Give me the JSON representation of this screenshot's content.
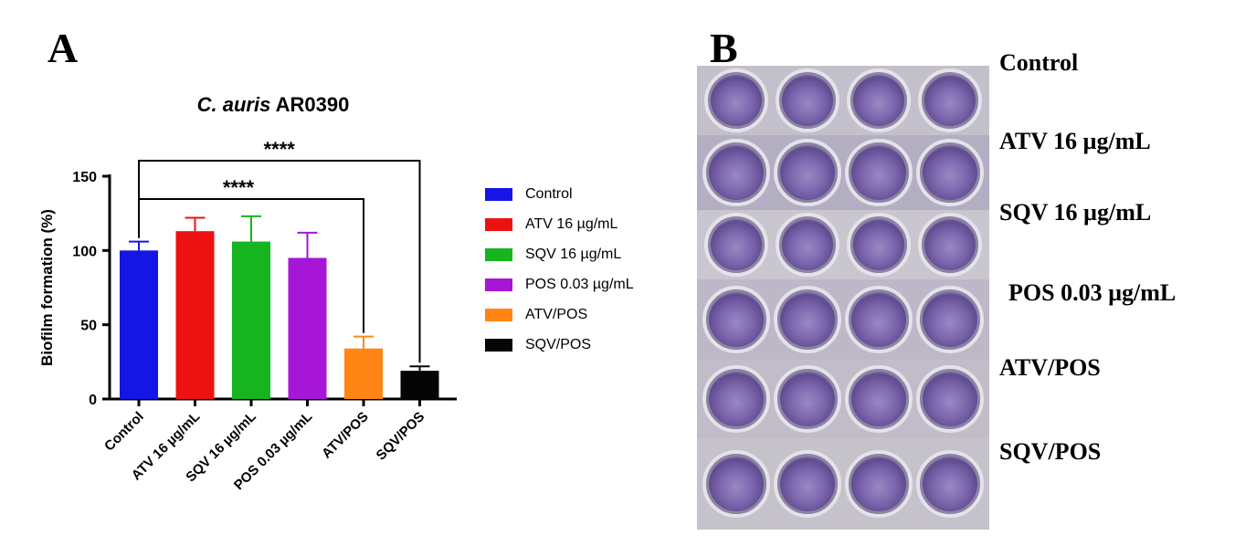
{
  "panel_a_label": "A",
  "panel_b_label": "B",
  "chart_data": {
    "type": "bar",
    "title_italic": "C. auris",
    "title_rest": " AR0390",
    "ylabel": "Biofilm formation (%)",
    "xlabel": "",
    "ylim": [
      0,
      150
    ],
    "yticks": [
      "0",
      "50",
      "100",
      "150"
    ],
    "categories": [
      "Control",
      "ATV 16 µg/mL",
      "SQV 16 µg/mL",
      "POS 0.03 µg/mL",
      "ATV/POS",
      "SQV/POS"
    ],
    "values": [
      100,
      113,
      106,
      95,
      34,
      19
    ],
    "errors": [
      6,
      9,
      17,
      17,
      8,
      3
    ],
    "colors": [
      "#1515e6",
      "#ee1111",
      "#16b41f",
      "#a716d6",
      "#ff8614",
      "#050505"
    ],
    "significance": [
      {
        "from": "Control",
        "to": "ATV/POS",
        "label": "****"
      },
      {
        "from": "Control",
        "to": "SQV/POS",
        "label": "****"
      }
    ],
    "legend": [
      "Control",
      "ATV 16 µg/mL",
      "SQV 16 µg/mL",
      "POS 0.03 µg/mL",
      "ATV/POS",
      "SQV/POS"
    ]
  },
  "panel_b": {
    "row_labels": [
      "Control",
      "ATV 16 µg/mL",
      "SQV 16 µg/mL",
      "POS 0.03 µg/mL",
      "ATV/POS",
      "SQV/POS"
    ],
    "wells_per_row": 4
  }
}
